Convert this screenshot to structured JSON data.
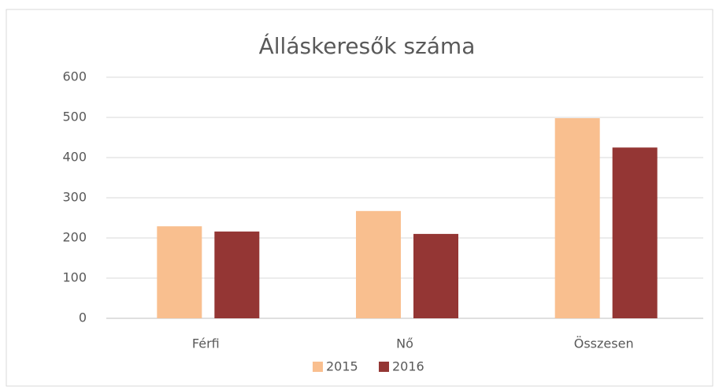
{
  "chart_data": {
    "type": "bar",
    "title": "Álláskeresők száma",
    "categories": [
      "Férfi",
      "Nő",
      "Összesen"
    ],
    "series": [
      {
        "name": "2015",
        "color": "#f9bf8f",
        "values": [
          229,
          267,
          498
        ]
      },
      {
        "name": "2016",
        "color": "#943634",
        "values": [
          216,
          210,
          425
        ]
      }
    ],
    "ylim": [
      0,
      600
    ],
    "yticks": [
      0,
      100,
      200,
      300,
      400,
      500,
      600
    ],
    "grid": true,
    "legend": "bottom"
  }
}
